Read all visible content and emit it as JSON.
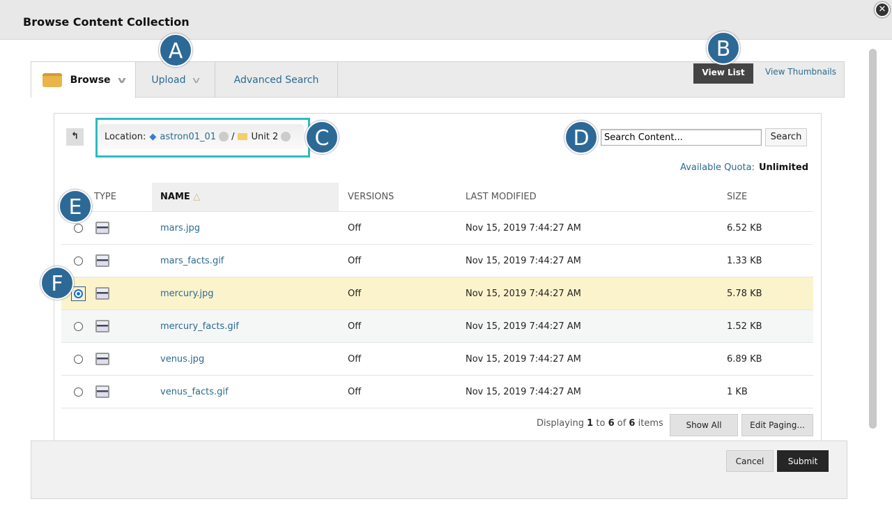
{
  "dialog": {
    "title": "Browse Content Collection"
  },
  "tabs": [
    {
      "label": "Browse"
    },
    {
      "label": "Upload"
    },
    {
      "label": "Advanced Search"
    }
  ],
  "view": {
    "list": "View List",
    "thumbnails": "View Thumbnails"
  },
  "location": {
    "label": "Location:",
    "course": "astron01_01",
    "separator": "/",
    "folder": "Unit 2"
  },
  "search": {
    "placeholder": "Search Content...",
    "button": "Search"
  },
  "quota": {
    "label": "Available Quota:",
    "value": "Unlimited"
  },
  "table": {
    "columns": [
      "TYPE",
      "NAME",
      "VERSIONS",
      "LAST MODIFIED",
      "SIZE"
    ],
    "rows": [
      {
        "name": "mars.jpg",
        "versions": "Off",
        "modified": "Nov 15, 2019 7:44:27 AM",
        "size": "6.52 KB",
        "selected": false
      },
      {
        "name": "mars_facts.gif",
        "versions": "Off",
        "modified": "Nov 15, 2019 7:44:27 AM",
        "size": "1.33 KB",
        "selected": false
      },
      {
        "name": "mercury.jpg",
        "versions": "Off",
        "modified": "Nov 15, 2019 7:44:27 AM",
        "size": "5.78 KB",
        "selected": true
      },
      {
        "name": "mercury_facts.gif",
        "versions": "Off",
        "modified": "Nov 15, 2019 7:44:27 AM",
        "size": "1.52 KB",
        "selected": false
      },
      {
        "name": "venus.jpg",
        "versions": "Off",
        "modified": "Nov 15, 2019 7:44:27 AM",
        "size": "6.89 KB",
        "selected": false
      },
      {
        "name": "venus_facts.gif",
        "versions": "Off",
        "modified": "Nov 15, 2019 7:44:27 AM",
        "size": "1 KB",
        "selected": false
      }
    ]
  },
  "paging": {
    "prefix": "Displaying",
    "from": "1",
    "to_word": "to",
    "to": "6",
    "of_word": "of",
    "total": "6",
    "suffix": "items",
    "show_all": "Show All",
    "edit_paging": "Edit Paging..."
  },
  "actions": {
    "cancel": "Cancel",
    "submit": "Submit"
  },
  "callouts": [
    "A",
    "B",
    "C",
    "D",
    "E",
    "F"
  ],
  "colors": {
    "accent": "#2b6a8f",
    "callout": "#2d6996",
    "highlight": "#2bbcc0",
    "selected_row": "#fbf3cc"
  }
}
